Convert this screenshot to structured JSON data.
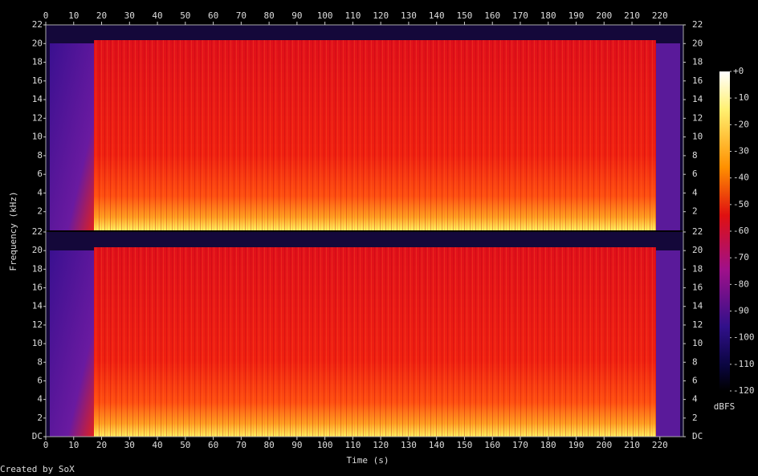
{
  "chart_data": {
    "type": "spectrogram",
    "xlabel": "Time (s)",
    "ylabel": "Frequency (kHz)",
    "xlim": [
      0,
      228.4
    ],
    "xticks": [
      0,
      10,
      20,
      30,
      40,
      50,
      60,
      70,
      80,
      90,
      100,
      110,
      120,
      130,
      140,
      150,
      160,
      170,
      180,
      190,
      200,
      210,
      220
    ],
    "panels": [
      {
        "ylim": [
          0,
          22
        ],
        "yticks": [
          2,
          4,
          6,
          8,
          10,
          12,
          14,
          16,
          18,
          20,
          22
        ]
      },
      {
        "ylim": [
          0,
          22
        ],
        "yticks": [
          {
            "value": 0,
            "label": "DC"
          },
          2,
          4,
          6,
          8,
          10,
          12,
          14,
          16,
          18,
          20,
          22
        ]
      }
    ],
    "colorbar": {
      "label": "dBFS",
      "lim": [
        -120,
        0
      ],
      "ticks": [
        {
          "value": 0,
          "label": "+0"
        },
        -10,
        -20,
        -30,
        -40,
        -50,
        -60,
        -70,
        -80,
        -90,
        -100,
        -110,
        -120
      ]
    },
    "credit": "Created by SoX"
  }
}
